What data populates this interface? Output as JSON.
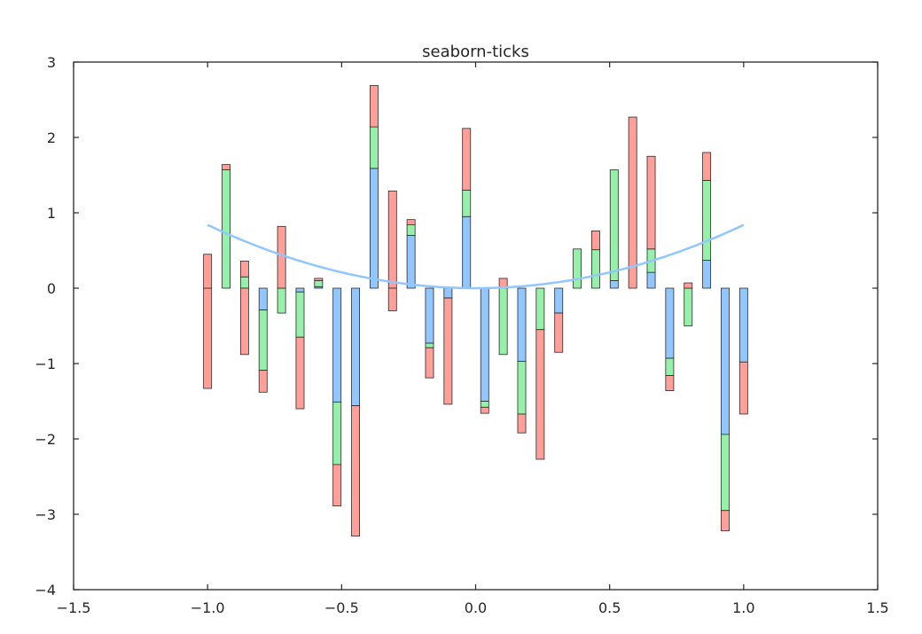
{
  "chart_data": {
    "type": "bar",
    "title": "seaborn-ticks",
    "xlabel": "",
    "ylabel": "",
    "xlim": [
      -1.5,
      1.5
    ],
    "ylim": [
      -4,
      3
    ],
    "xticks": [
      -1.5,
      -1.0,
      -0.5,
      0.0,
      0.5,
      1.0,
      1.5
    ],
    "xtick_labels": [
      "−1.5",
      "−1.0",
      "−0.5",
      "0.0",
      "0.5",
      "1.0",
      "1.5"
    ],
    "yticks": [
      3,
      2,
      1,
      0,
      -1,
      -2,
      -3,
      -4
    ],
    "ytick_labels": [
      "3",
      "2",
      "1",
      "0",
      "−1",
      "−2",
      "−3",
      "−4"
    ],
    "grid": false,
    "legend": "none",
    "bar_width": 0.03,
    "stack_order": [
      "blue",
      "green",
      "red"
    ],
    "colors": {
      "blue": "#92c6ff",
      "green": "#97f0aa",
      "red": "#ff9f9a",
      "line": "#92c6ff",
      "axis": "#262626",
      "bar_edge": "#2a2a2a"
    },
    "x": [
      -1.0,
      -0.931,
      -0.862,
      -0.793,
      -0.724,
      -0.655,
      -0.586,
      -0.517,
      -0.448,
      -0.379,
      -0.31,
      -0.241,
      -0.172,
      -0.103,
      -0.034,
      0.034,
      0.103,
      0.172,
      0.241,
      0.31,
      0.379,
      0.448,
      0.517,
      0.586,
      0.655,
      0.724,
      0.793,
      0.862,
      0.931,
      1.0
    ],
    "series": [
      {
        "color": "blue",
        "values": [
          0.0,
          0.0,
          0.0,
          -0.29,
          0.0,
          -0.05,
          0.02,
          -1.51,
          -1.56,
          1.59,
          0.0,
          0.7,
          -0.73,
          -0.13,
          0.95,
          -1.5,
          0.0,
          -0.97,
          0.0,
          -0.33,
          0.0,
          0.0,
          0.1,
          0.0,
          0.21,
          -0.93,
          0.0,
          0.37,
          -1.94,
          -0.98
        ]
      },
      {
        "color": "green",
        "values": [
          0.0,
          1.57,
          0.15,
          -0.8,
          -0.33,
          -0.6,
          0.08,
          -0.83,
          0.0,
          0.55,
          0.0,
          0.14,
          -0.06,
          0.0,
          0.35,
          -0.08,
          -0.88,
          -0.7,
          -0.55,
          0.0,
          0.52,
          0.51,
          1.47,
          0.0,
          0.31,
          -0.23,
          -0.5,
          1.06,
          -1.01,
          0.0
        ]
      },
      {
        "color": "red",
        "values": [
          -1.33,
          0.07,
          -0.88,
          -0.29,
          0.0,
          0.0,
          0.03,
          -0.55,
          -1.73,
          0.55,
          1.29,
          0.07,
          -0.4,
          0.0,
          0.82,
          -0.08,
          0.13,
          -0.25,
          -1.72,
          -0.52,
          0.0,
          0.25,
          0.0,
          2.27,
          1.23,
          -0.2,
          0.07,
          0.37,
          -0.27,
          -0.69
        ]
      },
      {
        "color": "red",
        "values": [
          0.45,
          0.0,
          0.21,
          0.0,
          0.82,
          -0.95,
          0.0,
          0.0,
          0.0,
          0.0,
          -0.3,
          0.0,
          0.0,
          -1.41,
          0.0,
          0.0,
          0.0,
          0.0,
          0.0,
          0.0,
          0.0,
          0.0,
          0.0,
          0.0,
          0.0,
          0.0,
          0.0,
          0.0,
          0.0,
          0.0
        ]
      }
    ],
    "line": {
      "type": "line",
      "color": "line",
      "function": "x^2 * 0.84",
      "x_range": [
        -1.0,
        1.0
      ]
    }
  }
}
